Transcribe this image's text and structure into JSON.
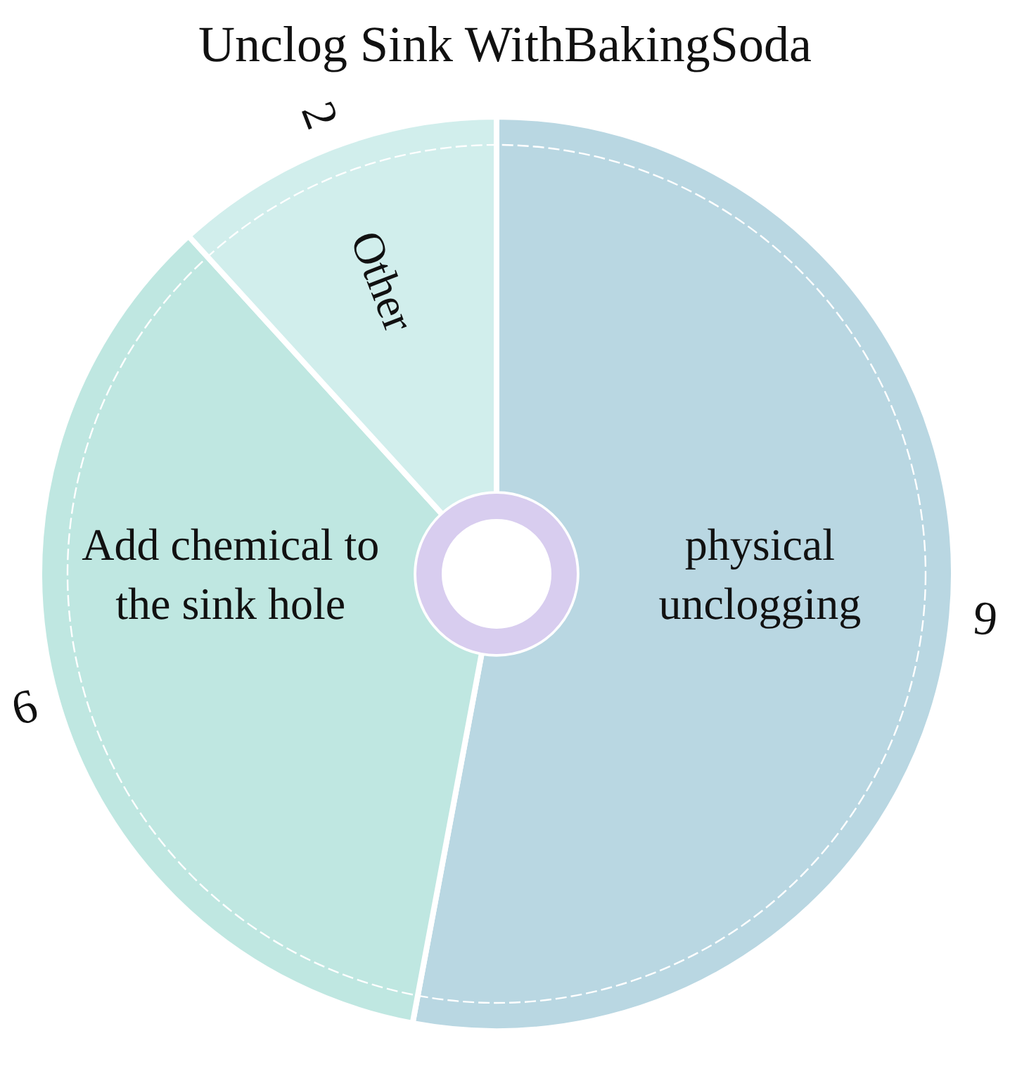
{
  "chart_data": {
    "type": "donut",
    "title": "Unclog Sink WithBakingSoda",
    "categories": [
      "physical unclogging",
      "Add chemical to the sink hole",
      "Other"
    ],
    "values": [
      9,
      6,
      2
    ],
    "colors": [
      "#b9d7e2",
      "#bfe7e1",
      "#d1eeec"
    ],
    "data_labels": true
  }
}
